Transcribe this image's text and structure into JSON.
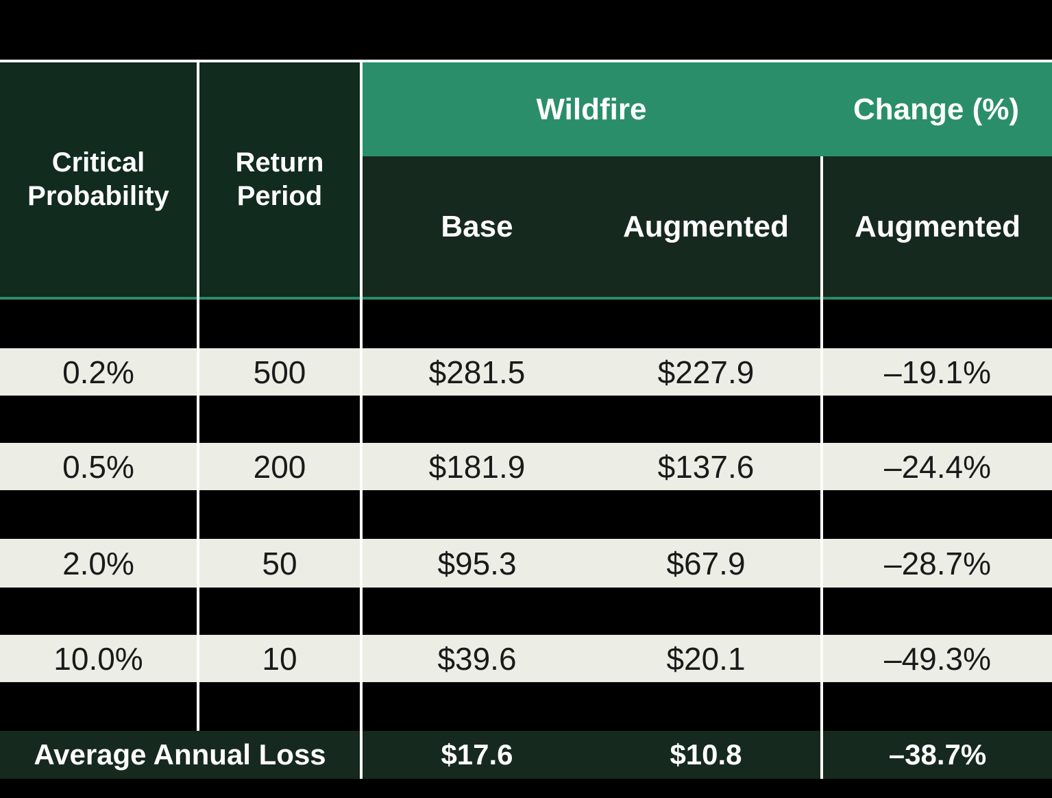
{
  "chart_data": {
    "type": "table",
    "header": {
      "critical_probability": "Critical Probability",
      "return_period": "Return Period",
      "wildfire_group": "Wildfire",
      "change_group": "Change (%)",
      "base": "Base",
      "augmented": "Augmented",
      "change_augmented": "Augmented"
    },
    "rows": [
      {
        "critical_probability": "0.2%",
        "return_period": "500",
        "base": "$281.5",
        "augmented": "$227.9",
        "change": "–19.1%"
      },
      {
        "critical_probability": "0.5%",
        "return_period": "200",
        "base": "$181.9",
        "augmented": "$137.6",
        "change": "–24.4%"
      },
      {
        "critical_probability": "2.0%",
        "return_period": "50",
        "base": "$95.3",
        "augmented": "$67.9",
        "change": "–28.7%"
      },
      {
        "critical_probability": "10.0%",
        "return_period": "10",
        "base": "$39.6",
        "augmented": "$20.1",
        "change": "–49.3%"
      }
    ],
    "footer": {
      "label": "Average Annual Loss",
      "base": "$17.6",
      "augmented": "$10.8",
      "change": "–38.7%"
    }
  },
  "colors": {
    "background": "#000000",
    "header_dark_green": "#112b1f",
    "subheader_dark_green": "#16291e",
    "band_green": "#2a8e6b",
    "underline_green": "#2b8a67",
    "row_cream": "#ecede4",
    "divider_white": "#ffffff",
    "text_dark": "#1a1a1a",
    "text_white": "#ffffff"
  }
}
